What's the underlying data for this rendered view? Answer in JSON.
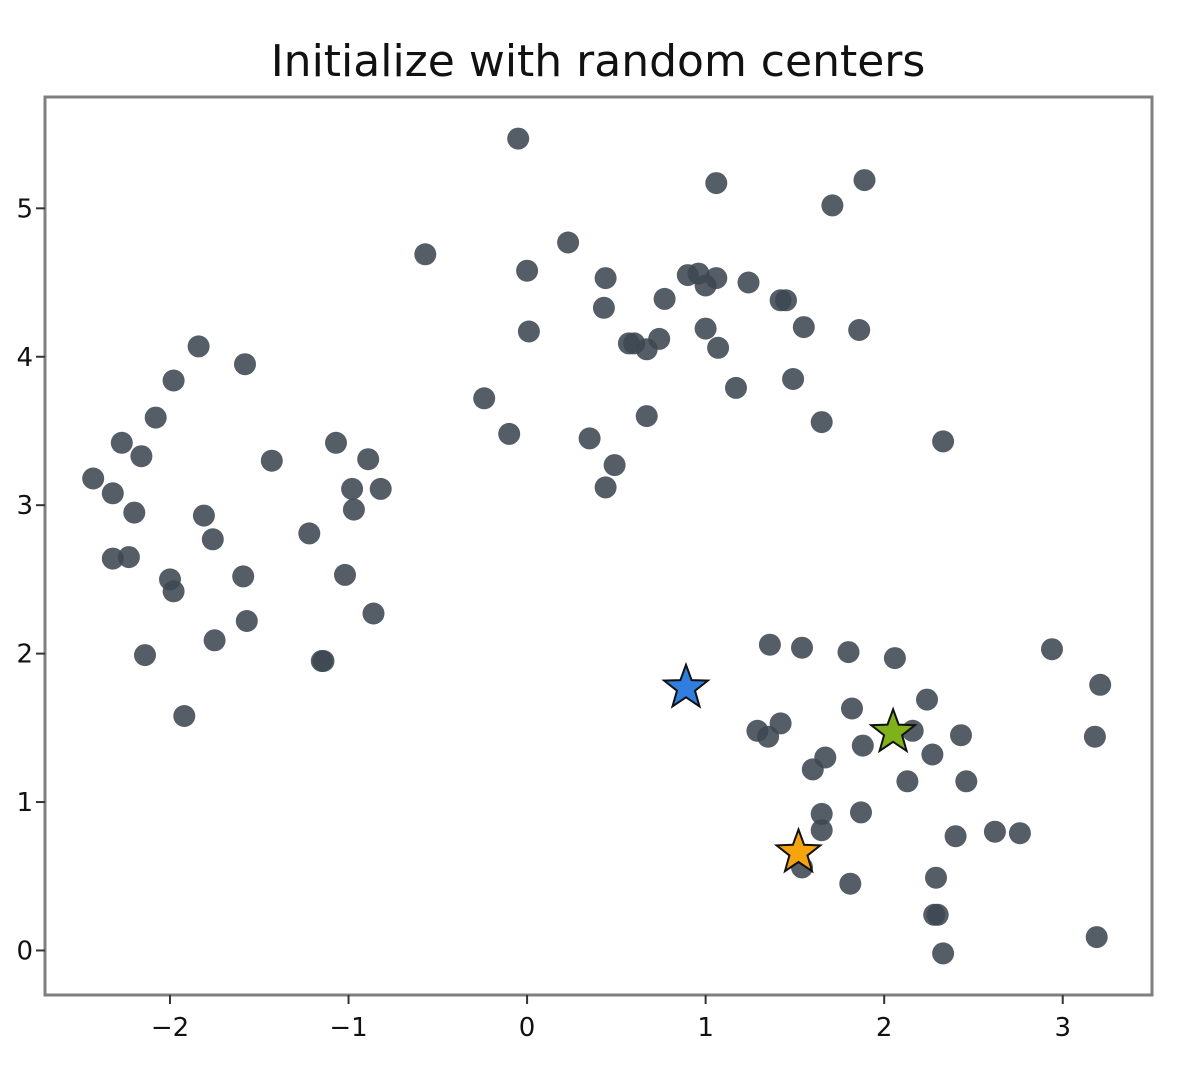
{
  "chart_data": {
    "type": "scatter",
    "title": "Initialize with random centers",
    "xlabel": "",
    "ylabel": "",
    "xlim": [
      -2.7,
      3.5
    ],
    "ylim": [
      -0.3,
      5.75
    ],
    "grid": false,
    "xticks": [
      -2,
      -1,
      0,
      1,
      2,
      3
    ],
    "yticks": [
      0,
      1,
      2,
      3,
      4,
      5
    ],
    "xtick_labels": [
      "−2",
      "−1",
      "0",
      "1",
      "2",
      "3"
    ],
    "ytick_labels": [
      "0",
      "1",
      "2",
      "3",
      "4",
      "5"
    ],
    "point_color": "#3d4852",
    "points": [
      [
        -0.05,
        5.47
      ],
      [
        1.06,
        5.17
      ],
      [
        1.89,
        5.19
      ],
      [
        1.71,
        5.02
      ],
      [
        -0.57,
        4.69
      ],
      [
        0.23,
        4.77
      ],
      [
        0.0,
        4.58
      ],
      [
        0.44,
        4.53
      ],
      [
        0.9,
        4.55
      ],
      [
        0.96,
        4.56
      ],
      [
        1.0,
        4.48
      ],
      [
        1.06,
        4.53
      ],
      [
        1.24,
        4.5
      ],
      [
        0.77,
        4.39
      ],
      [
        1.42,
        4.38
      ],
      [
        1.45,
        4.38
      ],
      [
        0.43,
        4.33
      ],
      [
        1.55,
        4.2
      ],
      [
        1.86,
        4.18
      ],
      [
        0.01,
        4.17
      ],
      [
        1.0,
        4.19
      ],
      [
        0.57,
        4.09
      ],
      [
        0.6,
        4.09
      ],
      [
        0.67,
        4.05
      ],
      [
        0.74,
        4.12
      ],
      [
        1.07,
        4.06
      ],
      [
        1.49,
        3.85
      ],
      [
        1.17,
        3.79
      ],
      [
        -0.24,
        3.72
      ],
      [
        0.67,
        3.6
      ],
      [
        1.65,
        3.56
      ],
      [
        -0.1,
        3.48
      ],
      [
        0.35,
        3.45
      ],
      [
        2.33,
        3.43
      ],
      [
        0.49,
        3.27
      ],
      [
        0.44,
        3.12
      ],
      [
        -1.84,
        4.07
      ],
      [
        -1.58,
        3.95
      ],
      [
        -1.98,
        3.84
      ],
      [
        -2.08,
        3.59
      ],
      [
        -2.27,
        3.42
      ],
      [
        -1.07,
        3.42
      ],
      [
        -2.16,
        3.33
      ],
      [
        -0.89,
        3.31
      ],
      [
        -1.43,
        3.3
      ],
      [
        -2.43,
        3.18
      ],
      [
        -2.32,
        3.08
      ],
      [
        -0.98,
        3.11
      ],
      [
        -0.82,
        3.11
      ],
      [
        -2.2,
        2.95
      ],
      [
        -0.97,
        2.97
      ],
      [
        -1.81,
        2.93
      ],
      [
        -1.22,
        2.81
      ],
      [
        -1.76,
        2.77
      ],
      [
        -2.23,
        2.65
      ],
      [
        -2.32,
        2.64
      ],
      [
        -1.59,
        2.52
      ],
      [
        -2.0,
        2.5
      ],
      [
        -1.02,
        2.53
      ],
      [
        -1.98,
        2.42
      ],
      [
        -0.86,
        2.27
      ],
      [
        -1.57,
        2.22
      ],
      [
        -1.75,
        2.09
      ],
      [
        -2.14,
        1.99
      ],
      [
        -1.14,
        1.95
      ],
      [
        -1.15,
        1.95
      ],
      [
        -1.92,
        1.58
      ],
      [
        1.36,
        2.06
      ],
      [
        1.54,
        2.04
      ],
      [
        1.8,
        2.01
      ],
      [
        2.06,
        1.97
      ],
      [
        2.94,
        2.03
      ],
      [
        3.21,
        1.79
      ],
      [
        2.24,
        1.69
      ],
      [
        1.82,
        1.63
      ],
      [
        1.42,
        1.53
      ],
      [
        1.29,
        1.48
      ],
      [
        1.35,
        1.44
      ],
      [
        2.16,
        1.48
      ],
      [
        2.43,
        1.45
      ],
      [
        3.18,
        1.44
      ],
      [
        1.88,
        1.38
      ],
      [
        2.27,
        1.32
      ],
      [
        1.67,
        1.3
      ],
      [
        1.6,
        1.22
      ],
      [
        2.13,
        1.14
      ],
      [
        2.46,
        1.14
      ],
      [
        1.65,
        0.92
      ],
      [
        1.87,
        0.93
      ],
      [
        1.65,
        0.81
      ],
      [
        2.62,
        0.8
      ],
      [
        2.76,
        0.79
      ],
      [
        2.4,
        0.77
      ],
      [
        1.54,
        0.56
      ],
      [
        2.29,
        0.49
      ],
      [
        1.81,
        0.45
      ],
      [
        2.28,
        0.24
      ],
      [
        2.3,
        0.24
      ],
      [
        3.19,
        0.09
      ],
      [
        2.33,
        -0.02
      ]
    ],
    "centers": [
      {
        "x": 0.89,
        "y": 1.77,
        "color": "#2f7ee0"
      },
      {
        "x": 2.05,
        "y": 1.47,
        "color": "#7fb21a"
      },
      {
        "x": 1.52,
        "y": 0.66,
        "color": "#f5a40f"
      }
    ]
  }
}
